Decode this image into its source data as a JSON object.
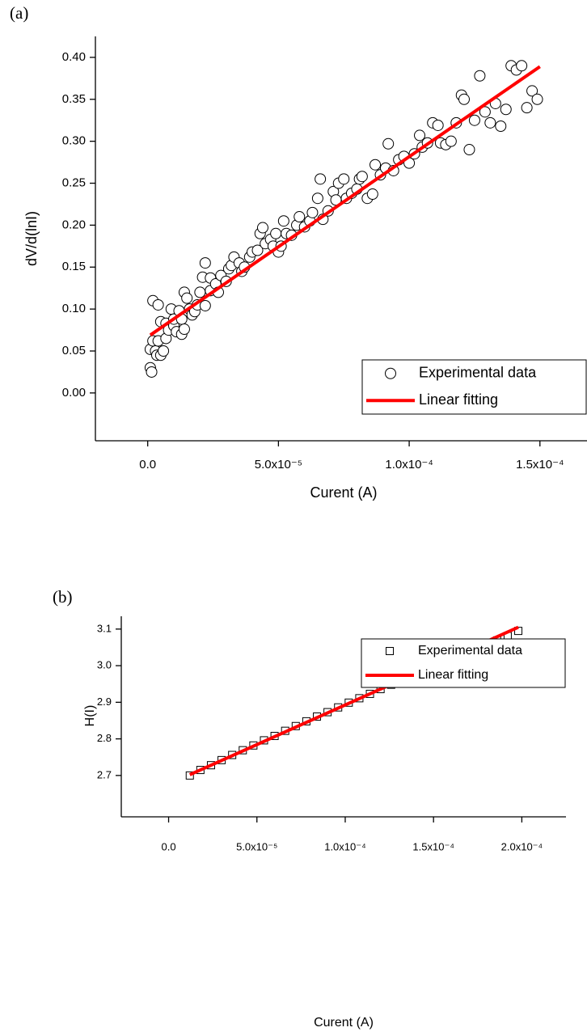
{
  "chart_data": [
    {
      "type": "scatter",
      "panel_label": "(a)",
      "x_label": "Curent (A)",
      "y_label": "dV/d(lnI)",
      "xlim": [
        -2e-05,
        0.000168
      ],
      "ylim": [
        -0.057,
        0.425
      ],
      "xticks": [
        {
          "value": 0,
          "label": "0.0"
        },
        {
          "value": 5e-05,
          "label": "5.0x10⁻⁵"
        },
        {
          "value": 0.0001,
          "label": "1.0x10⁻⁴"
        },
        {
          "value": 0.00015,
          "label": "1.5x10⁻⁴"
        }
      ],
      "yticks": [
        {
          "value": 0,
          "label": "0.00"
        },
        0.05,
        {
          "value": 0.1,
          "label": "0.10"
        },
        0.15,
        {
          "value": 0.2,
          "label": "0.20"
        },
        0.25,
        {
          "value": 0.3,
          "label": "0.30"
        },
        0.35,
        {
          "value": 0.4,
          "label": "0.40"
        }
      ],
      "legend": "lower right",
      "series": [
        {
          "name": "Experimental data",
          "color": "#000000",
          "marker": "circle",
          "x": [
            1e-06,
            1e-06,
            1.5e-06,
            2e-06,
            2e-06,
            3e-06,
            3.5e-06,
            4e-06,
            4e-06,
            5e-06,
            5e-06,
            6e-06,
            7e-06,
            7e-06,
            8e-06,
            9e-06,
            1e-05,
            1e-05,
            1.1e-05,
            1.2e-05,
            1.3e-05,
            1.3e-05,
            1.4e-05,
            1.4e-05,
            1.5e-05,
            1.6e-05,
            1.7e-05,
            1.8e-05,
            1.9e-05,
            2e-05,
            2.1e-05,
            2.2e-05,
            2.2e-05,
            2.4e-05,
            2.4e-05,
            2.6e-05,
            2.7e-05,
            2.8e-05,
            3e-05,
            3.1e-05,
            3.2e-05,
            3.3e-05,
            3.5e-05,
            3.6e-05,
            3.7e-05,
            3.9e-05,
            4e-05,
            4.2e-05,
            4.3e-05,
            4.4e-05,
            4.5e-05,
            4.7e-05,
            4.8e-05,
            4.9e-05,
            5e-05,
            5.1e-05,
            5.2e-05,
            5.3e-05,
            5.5e-05,
            5.7e-05,
            5.8e-05,
            6e-05,
            6.2e-05,
            6.3e-05,
            6.5e-05,
            6.6e-05,
            6.7e-05,
            6.9e-05,
            7.1e-05,
            7.2e-05,
            7.3e-05,
            7.5e-05,
            7.6e-05,
            7.8e-05,
            8e-05,
            8.1e-05,
            8.2e-05,
            8.4e-05,
            8.6e-05,
            8.7e-05,
            8.9e-05,
            9.1e-05,
            9.2e-05,
            9.4e-05,
            9.6e-05,
            9.8e-05,
            0.0001,
            0.000102,
            0.000104,
            0.000105,
            0.000107,
            0.000109,
            0.000111,
            0.000112,
            0.000114,
            0.000116,
            0.000118,
            0.00012,
            0.000121,
            0.000123,
            0.000125,
            0.000127,
            0.000129,
            0.000131,
            0.000133,
            0.000135,
            0.000137,
            0.000139,
            0.000141,
            0.000143,
            0.000145,
            0.000147,
            0.000149
          ],
          "values": [
            0.052,
            0.03,
            0.025,
            0.11,
            0.062,
            0.05,
            0.045,
            0.105,
            0.062,
            0.085,
            0.045,
            0.05,
            0.065,
            0.083,
            0.075,
            0.1,
            0.08,
            0.088,
            0.073,
            0.098,
            0.07,
            0.088,
            0.076,
            0.12,
            0.113,
            0.1,
            0.093,
            0.097,
            0.105,
            0.12,
            0.138,
            0.155,
            0.104,
            0.122,
            0.137,
            0.13,
            0.12,
            0.14,
            0.133,
            0.148,
            0.152,
            0.162,
            0.155,
            0.145,
            0.15,
            0.162,
            0.168,
            0.17,
            0.19,
            0.197,
            0.178,
            0.183,
            0.175,
            0.19,
            0.168,
            0.175,
            0.205,
            0.19,
            0.188,
            0.2,
            0.21,
            0.198,
            0.205,
            0.215,
            0.232,
            0.255,
            0.207,
            0.217,
            0.24,
            0.23,
            0.25,
            0.255,
            0.232,
            0.238,
            0.243,
            0.255,
            0.258,
            0.232,
            0.237,
            0.272,
            0.26,
            0.268,
            0.297,
            0.265,
            0.278,
            0.282,
            0.274,
            0.285,
            0.307,
            0.293,
            0.298,
            0.322,
            0.319,
            0.298,
            0.296,
            0.3,
            0.322,
            0.355,
            0.35,
            0.29,
            0.325,
            0.378,
            0.335,
            0.322,
            0.345,
            0.318,
            0.338,
            0.39,
            0.385,
            0.39,
            0.34,
            0.36,
            0.35
          ]
        },
        {
          "name": "Linear fitting",
          "color": "#ff0000",
          "x": [
            1e-06,
            0.00015
          ],
          "values": [
            0.069,
            0.389
          ]
        }
      ]
    },
    {
      "type": "scatter",
      "panel_label": "(b)",
      "x_label": "Curent (A)",
      "y_label": "H(I)",
      "xlim": [
        -2.68e-05,
        0.000225
      ],
      "ylim": [
        2.587,
        3.135
      ],
      "xticks": [
        {
          "value": 0,
          "label": "0.0"
        },
        {
          "value": 5e-05,
          "label": "5.0x10⁻⁵"
        },
        {
          "value": 0.0001,
          "label": "1.0x10⁻⁴"
        },
        {
          "value": 0.00015,
          "label": "1.5x10⁻⁴"
        },
        {
          "value": 0.0002,
          "label": "2.0x10⁻⁴"
        }
      ],
      "yticks": [
        2.7,
        2.8,
        2.9,
        {
          "value": 3,
          "label": "3.0"
        },
        3.1
      ],
      "legend": "lower right",
      "series": [
        {
          "name": "Experimental data",
          "color": "#000000",
          "marker": "square",
          "x": [
            1.2e-05,
            1.8e-05,
            2.4e-05,
            3e-05,
            3.6e-05,
            4.2e-05,
            4.8e-05,
            5.4e-05,
            6e-05,
            6.6e-05,
            7.2e-05,
            7.8e-05,
            8.4e-05,
            9e-05,
            9.6e-05,
            0.000102,
            0.000108,
            0.000114,
            0.00012,
            0.000126,
            0.000132,
            0.000138,
            0.000144,
            0.00015,
            0.000156,
            0.000162,
            0.000168,
            0.000174,
            0.00018,
            0.000186,
            0.000192,
            0.000198
          ],
          "values": [
            2.7,
            2.715,
            2.728,
            2.742,
            2.756,
            2.769,
            2.782,
            2.796,
            2.808,
            2.822,
            2.835,
            2.848,
            2.861,
            2.873,
            2.886,
            2.899,
            2.911,
            2.923,
            2.936,
            2.948,
            2.96,
            2.973,
            2.985,
            2.997,
            3.009,
            3.021,
            3.033,
            3.045,
            3.057,
            3.069,
            3.081,
            3.095
          ]
        },
        {
          "name": "Linear fitting",
          "color": "#ff0000",
          "x": [
            1.2e-05,
            0.000198
          ],
          "values": [
            2.702,
            3.105
          ]
        }
      ]
    }
  ]
}
